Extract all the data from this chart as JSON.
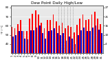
{
  "title": "Dew Point Daily High/Low",
  "background_color": "#ffffff",
  "plot_bg": "#e8e8e8",
  "high_color": "#ff0000",
  "low_color": "#0000cc",
  "highs": [
    59,
    57,
    62,
    66,
    54,
    54,
    68,
    73,
    77,
    72,
    63,
    57,
    66,
    66,
    72,
    65,
    60,
    63,
    57,
    60,
    59,
    53,
    61,
    68,
    72,
    66,
    67,
    72,
    75,
    68,
    62
  ],
  "lows": [
    48,
    50,
    54,
    54,
    46,
    45,
    55,
    55,
    58,
    60,
    52,
    46,
    54,
    55,
    57,
    52,
    50,
    52,
    44,
    48,
    46,
    40,
    50,
    55,
    58,
    54,
    54,
    58,
    60,
    56,
    52
  ],
  "ylim": [
    30,
    82
  ],
  "ytick_vals": [
    40,
    50,
    60,
    70,
    80
  ],
  "dotted_cols": [
    16,
    17,
    18,
    19,
    20,
    21
  ],
  "x_tick_labels": [
    "1",
    "2",
    "3",
    "4",
    "5",
    "6",
    "7",
    "8",
    "9",
    "10",
    "11",
    "12",
    "13",
    "14",
    "15",
    "16",
    "17",
    "18",
    "19",
    "20",
    "21",
    "22",
    "23",
    "24",
    "25",
    "26",
    "27",
    "28",
    "29",
    "30",
    "31"
  ],
  "left_label": "°F / °C",
  "title_fontsize": 4.2,
  "tick_fontsize": 3.0,
  "bar_width": 0.42
}
